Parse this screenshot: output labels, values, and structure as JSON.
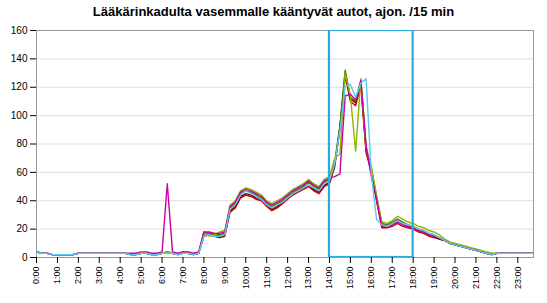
{
  "chart_data": {
    "type": "line",
    "title": "Lääkärinkadulta vasemmalle kääntyvät autot, ajon. /15 min",
    "x": [
      0,
      1,
      2,
      3,
      4,
      5,
      6,
      7,
      8,
      9,
      10,
      11,
      12,
      13,
      14,
      15,
      16,
      17,
      18,
      19,
      20,
      21,
      22,
      23,
      24,
      25,
      26,
      27,
      28,
      29,
      30,
      31,
      32,
      33,
      34,
      35,
      36,
      37,
      38,
      39,
      40,
      41,
      42,
      43,
      44,
      45,
      46,
      47,
      48,
      49,
      50,
      51,
      52,
      53,
      54,
      55,
      56,
      57,
      58,
      59,
      60,
      61,
      62,
      63,
      64,
      65,
      66,
      67,
      68,
      69,
      70,
      71,
      72,
      73,
      74,
      75,
      76,
      77,
      78,
      79,
      80,
      81,
      82,
      83,
      84,
      85,
      86,
      87,
      88,
      89,
      90,
      91,
      92,
      93,
      94,
      95
    ],
    "series": [
      {
        "color": "#cc0000",
        "values": [
          4,
          3,
          3,
          2,
          2,
          2,
          2,
          2,
          3,
          3,
          3,
          3,
          3,
          3,
          3,
          3,
          3,
          3,
          2,
          2,
          3,
          3,
          2,
          2,
          3,
          4,
          3,
          2,
          4,
          3,
          2,
          3,
          18,
          17,
          16,
          15,
          16,
          32,
          35,
          42,
          44,
          43,
          41,
          40,
          36,
          33,
          35,
          38,
          41,
          44,
          46,
          48,
          50,
          47,
          45,
          50,
          52,
          64,
          91,
          128,
          110,
          107,
          121,
          74,
          60,
          40,
          21,
          21,
          22,
          24,
          22,
          21,
          20,
          18,
          17,
          15,
          14,
          13,
          12,
          10,
          9,
          8,
          7,
          6,
          5,
          4,
          3,
          2,
          3,
          3,
          3,
          3,
          3,
          3,
          3,
          3
        ]
      },
      {
        "color": "#7B0000",
        "values": [
          4,
          3,
          3,
          2,
          2,
          2,
          2,
          2,
          3,
          3,
          3,
          3,
          3,
          3,
          3,
          3,
          3,
          3,
          2,
          2,
          3,
          3,
          2,
          2,
          3,
          3,
          3,
          2,
          3,
          3,
          2,
          3,
          15,
          16,
          15,
          14,
          15,
          33,
          36,
          43,
          45,
          44,
          42,
          41,
          37,
          34,
          36,
          39,
          42,
          45,
          47,
          49,
          51,
          48,
          46,
          51,
          53,
          65,
          92,
          130,
          112,
          109,
          123,
          76,
          62,
          42,
          23,
          22,
          24,
          26,
          24,
          22,
          21,
          19,
          18,
          16,
          15,
          13,
          12,
          10,
          9,
          8,
          7,
          6,
          5,
          4,
          3,
          2,
          3,
          3,
          3,
          3,
          3,
          3,
          3,
          3
        ]
      },
      {
        "color": "#3C7A00",
        "values": [
          4,
          3,
          3,
          2,
          2,
          2,
          2,
          2,
          3,
          3,
          3,
          3,
          3,
          3,
          3,
          3,
          3,
          3,
          2,
          2,
          3,
          3,
          2,
          2,
          3,
          4,
          3,
          2,
          4,
          3,
          2,
          3,
          16,
          17,
          17,
          16,
          17,
          35,
          38,
          45,
          47,
          46,
          44,
          42,
          38,
          36,
          38,
          40,
          43,
          46,
          48,
          50,
          53,
          50,
          48,
          53,
          55,
          67,
          93,
          132,
          113,
          110,
          124,
          77,
          63,
          43,
          24,
          23,
          25,
          27,
          25,
          23,
          22,
          20,
          19,
          17,
          16,
          14,
          12,
          10,
          9,
          8,
          7,
          6,
          5,
          4,
          3,
          2,
          3,
          3,
          3,
          3,
          3,
          3,
          3,
          3
        ]
      },
      {
        "color": "#8DB600",
        "values": [
          4,
          3,
          3,
          2,
          2,
          2,
          2,
          2,
          3,
          3,
          3,
          3,
          3,
          3,
          3,
          3,
          3,
          3,
          2,
          2,
          3,
          4,
          2,
          2,
          3,
          4,
          3,
          2,
          4,
          4,
          2,
          4,
          17,
          15,
          16,
          18,
          19,
          37,
          40,
          47,
          49,
          48,
          46,
          44,
          40,
          38,
          40,
          42,
          45,
          48,
          50,
          52,
          55,
          52,
          50,
          55,
          57,
          70,
          73,
          130,
          114,
          75,
          126,
          78,
          64,
          44,
          25,
          24,
          26,
          29,
          27,
          25,
          24,
          22,
          21,
          19,
          18,
          16,
          13,
          11,
          10,
          9,
          8,
          7,
          6,
          5,
          4,
          3,
          3,
          3,
          3,
          3,
          3,
          3,
          3,
          3
        ]
      },
      {
        "color": "#CC00AA",
        "values": [
          4,
          3,
          3,
          2,
          2,
          2,
          2,
          2,
          3,
          3,
          3,
          3,
          3,
          3,
          3,
          3,
          3,
          3,
          3,
          3,
          4,
          4,
          3,
          3,
          4,
          52,
          4,
          3,
          4,
          4,
          3,
          4,
          18,
          18,
          17,
          17,
          18,
          36,
          39,
          46,
          48,
          47,
          45,
          43,
          39,
          37,
          39,
          41,
          44,
          47,
          49,
          51,
          54,
          51,
          49,
          54,
          56,
          57,
          59,
          114,
          115,
          111,
          125,
          79,
          57,
          41,
          22,
          22,
          23,
          25,
          23,
          22,
          21,
          19,
          18,
          16,
          15,
          14,
          12,
          10,
          9,
          8,
          7,
          6,
          5,
          4,
          3,
          2,
          3,
          3,
          3,
          3,
          3,
          3,
          3,
          3
        ]
      },
      {
        "color": "#5BC8F5",
        "values": [
          4,
          3,
          3,
          2,
          2,
          2,
          2,
          2,
          3,
          3,
          3,
          3,
          3,
          3,
          3,
          3,
          3,
          3,
          2,
          2,
          3,
          3,
          2,
          2,
          3,
          3,
          3,
          2,
          3,
          3,
          2,
          3,
          15,
          16,
          15,
          15,
          16,
          34,
          37,
          44,
          47,
          45,
          43,
          41,
          37,
          35,
          37,
          39,
          42,
          45,
          47,
          49,
          51,
          49,
          47,
          52,
          54,
          66,
          89,
          121,
          122,
          113,
          123,
          126,
          59,
          27,
          23,
          22,
          24,
          26,
          24,
          23,
          22,
          20,
          19,
          17,
          16,
          14,
          12,
          10,
          9,
          8,
          7,
          6,
          5,
          4,
          3,
          2,
          3,
          3,
          3,
          3,
          3,
          3,
          3,
          3
        ]
      }
    ],
    "xlim": [
      0,
      95
    ],
    "xticks": [
      {
        "value": 0,
        "label": "0:00"
      },
      {
        "value": 4,
        "label": "1:00"
      },
      {
        "value": 8,
        "label": "2:00"
      },
      {
        "value": 12,
        "label": "3:00"
      },
      {
        "value": 16,
        "label": "4:00"
      },
      {
        "value": 20,
        "label": "5:00"
      },
      {
        "value": 24,
        "label": "6:00"
      },
      {
        "value": 28,
        "label": "7:00"
      },
      {
        "value": 32,
        "label": "8:00"
      },
      {
        "value": 36,
        "label": "9:00"
      },
      {
        "value": 40,
        "label": "10:00"
      },
      {
        "value": 44,
        "label": "11:00"
      },
      {
        "value": 48,
        "label": "12:00"
      },
      {
        "value": 52,
        "label": "13:00"
      },
      {
        "value": 56,
        "label": "14:00"
      },
      {
        "value": 60,
        "label": "15:00"
      },
      {
        "value": 64,
        "label": "16:00"
      },
      {
        "value": 68,
        "label": "17:00"
      },
      {
        "value": 72,
        "label": "18:00"
      },
      {
        "value": 76,
        "label": "19:00"
      },
      {
        "value": 80,
        "label": "20:00"
      },
      {
        "value": 84,
        "label": "21:00"
      },
      {
        "value": 88,
        "label": "22:00"
      },
      {
        "value": 92,
        "label": "23:00"
      }
    ],
    "ylim": [
      0,
      160
    ],
    "yticks": [
      0,
      20,
      40,
      60,
      80,
      100,
      120,
      140,
      160
    ],
    "grid": true,
    "highlight": {
      "x": [
        56,
        72
      ],
      "color": "#29ABE2"
    }
  }
}
